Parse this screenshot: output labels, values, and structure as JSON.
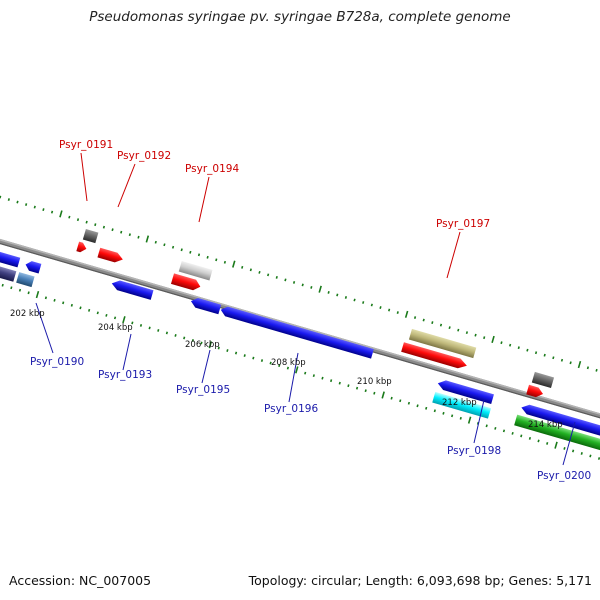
{
  "title": "Pseudomonas syringae pv. syringae B728a, complete genome",
  "footer": {
    "accession": "Accession: NC_007005",
    "summary": "Topology: circular; Length: 6,093,698 bp; Genes: 5,171"
  },
  "colors": {
    "top_label": "#cc0000",
    "bottom_label": "#1a1aaa",
    "backbone": "#8a8a8a",
    "tick_mark": "#1a7a1a"
  },
  "tick_labels": [
    "202 kbp",
    "204 kbp",
    "206 kbp",
    "208 kbp",
    "210 kbp",
    "212 kbp",
    "214 kbp"
  ],
  "genes_top": [
    "Psyr_0191",
    "Psyr_0192",
    "Psyr_0194",
    "Psyr_0197"
  ],
  "genes_bottom": [
    "Psyr_0190",
    "Psyr_0193",
    "Psyr_0195",
    "Psyr_0196",
    "Psyr_0198",
    "Psyr_0200"
  ]
}
